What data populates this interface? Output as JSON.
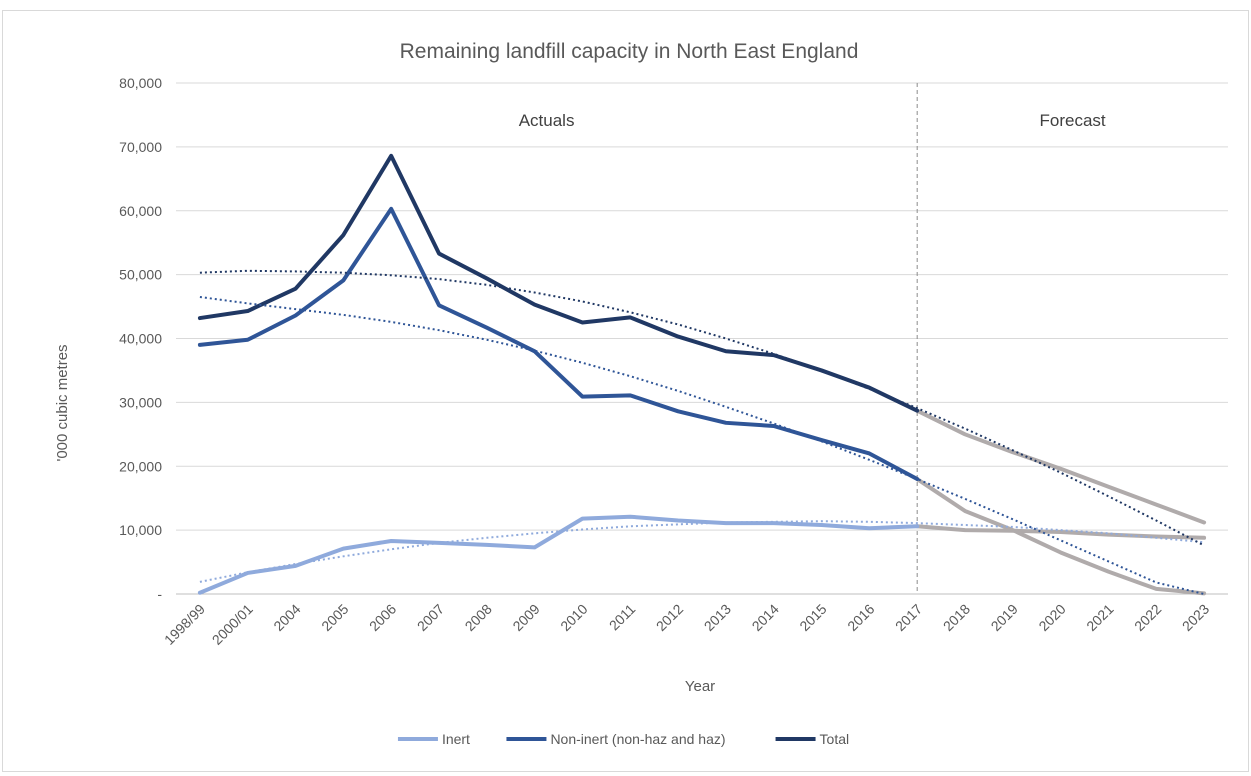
{
  "chart_data": {
    "type": "line",
    "title": "Remaining landfill capacity in North East England",
    "xlabel": "Year",
    "ylabel": "'000 cubic metres",
    "ylim": [
      0,
      80000
    ],
    "yticks": [
      0,
      10000,
      20000,
      30000,
      40000,
      50000,
      60000,
      70000,
      80000
    ],
    "ytick_labels": [
      "-",
      "10,000",
      "20,000",
      "30,000",
      "40,000",
      "50,000",
      "60,000",
      "70,000",
      "80,000"
    ],
    "categories": [
      "1998/99",
      "2000/01",
      "2004",
      "2005",
      "2006",
      "2007",
      "2008",
      "2009",
      "2010",
      "2011",
      "2012",
      "2013",
      "2014",
      "2015",
      "2016",
      "2017",
      "2018",
      "2019",
      "2020",
      "2021",
      "2022",
      "2023"
    ],
    "regions": [
      {
        "label": "Actuals",
        "from": "1998/99",
        "to": "2017"
      },
      {
        "label": "Forecast",
        "from": "2017",
        "to": "2023"
      }
    ],
    "divider_at": "2017",
    "forecast_color": "#b0abab",
    "trendline_style": "dotted polynomial",
    "legend_position": "bottom",
    "series": [
      {
        "name": "Inert",
        "color": "#8faadc",
        "values": [
          200,
          3300,
          4400,
          7100,
          8300,
          8000,
          7700,
          7300,
          11800,
          12100,
          11500,
          11100,
          11100,
          10800,
          10300,
          10600,
          10000,
          9900,
          9700,
          9300,
          9000,
          8800
        ]
      },
      {
        "name": "Non-inert (non-haz and haz)",
        "color": "#2f5597",
        "values": [
          39000,
          39800,
          43600,
          49100,
          60300,
          45200,
          41700,
          38000,
          30900,
          31100,
          28600,
          26800,
          26300,
          24100,
          22000,
          18000,
          13000,
          10000,
          6500,
          3500,
          800,
          100
        ]
      },
      {
        "name": "Total",
        "color": "#203864",
        "values": [
          43200,
          44300,
          47800,
          56200,
          68600,
          53300,
          49400,
          45300,
          42500,
          43300,
          40300,
          38000,
          37400,
          35000,
          32300,
          28700,
          25000,
          22200,
          19600,
          16800,
          14000,
          11200
        ]
      }
    ],
    "trendlines": [
      {
        "of": "Inert",
        "values": [
          1900,
          3400,
          4700,
          5900,
          7000,
          8000,
          8800,
          9500,
          10100,
          10600,
          10900,
          11200,
          11300,
          11400,
          11300,
          11100,
          10800,
          10500,
          10000,
          9500,
          8800,
          8100
        ]
      },
      {
        "of": "Non-inert (non-haz and haz)",
        "values": [
          46500,
          45500,
          44600,
          43700,
          42600,
          41300,
          39800,
          38100,
          36200,
          34100,
          31800,
          29300,
          26700,
          23900,
          21000,
          18000,
          14900,
          11700,
          8400,
          5100,
          1800,
          -1600
        ]
      },
      {
        "of": "Total",
        "values": [
          50300,
          50600,
          50500,
          50300,
          49900,
          49300,
          48400,
          47200,
          45800,
          44100,
          42200,
          40000,
          37600,
          35000,
          32100,
          29100,
          25900,
          22500,
          19000,
          15300,
          11500,
          7600
        ]
      }
    ]
  }
}
